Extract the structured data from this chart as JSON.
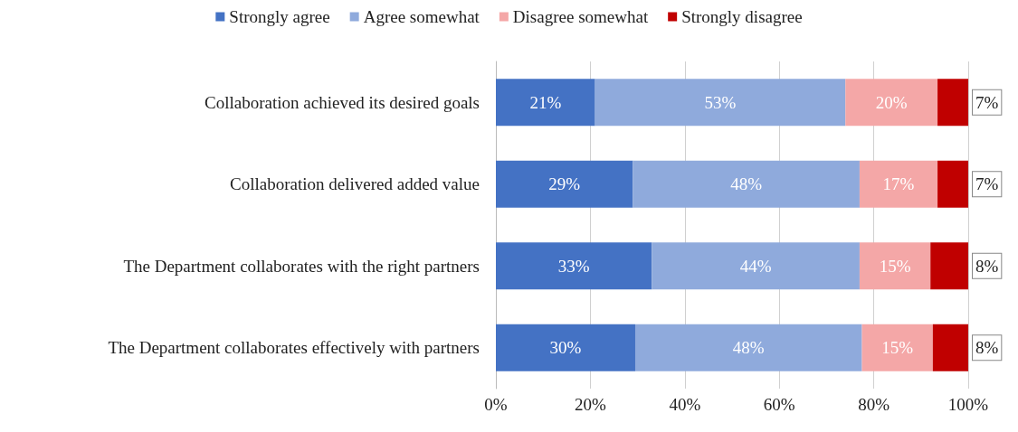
{
  "chart_data": {
    "type": "bar",
    "orientation": "horizontal",
    "stacked": true,
    "categories": [
      "Collaboration achieved its desired goals",
      "Collaboration delivered added value",
      "The Department collaborates with the right partners",
      "The Department collaborates effectively with partners"
    ],
    "series": [
      {
        "name": "Strongly agree",
        "color": "#4472c4",
        "values": [
          21,
          29,
          33,
          29.5
        ],
        "value_labels": [
          "21%",
          "29%",
          "33%",
          "30%"
        ]
      },
      {
        "name": "Agree somewhat",
        "color": "#8faadc",
        "values": [
          53,
          48,
          44,
          48
        ],
        "value_labels": [
          "53%",
          "48%",
          "44%",
          "48%"
        ]
      },
      {
        "name": "Disagree somewhat",
        "color": "#f4a7a7",
        "values": [
          19.5,
          16.5,
          15,
          15
        ],
        "value_labels": [
          "20%",
          "17%",
          "15%",
          "15%"
        ]
      },
      {
        "name": "Strongly disagree",
        "color": "#c00000",
        "values": [
          6.5,
          6.5,
          8,
          7.5
        ],
        "value_labels": [
          "7%",
          "7%",
          "8%",
          "8%"
        ]
      }
    ],
    "xlim": [
      0,
      100
    ],
    "xticks": [
      {
        "value": 0,
        "label": "0%"
      },
      {
        "value": 20,
        "label": "20%"
      },
      {
        "value": 40,
        "label": "40%"
      },
      {
        "value": 60,
        "label": "60%"
      },
      {
        "value": 80,
        "label": "80%"
      },
      {
        "value": 100,
        "label": "100%"
      }
    ],
    "grid": "x",
    "legend": "top"
  }
}
